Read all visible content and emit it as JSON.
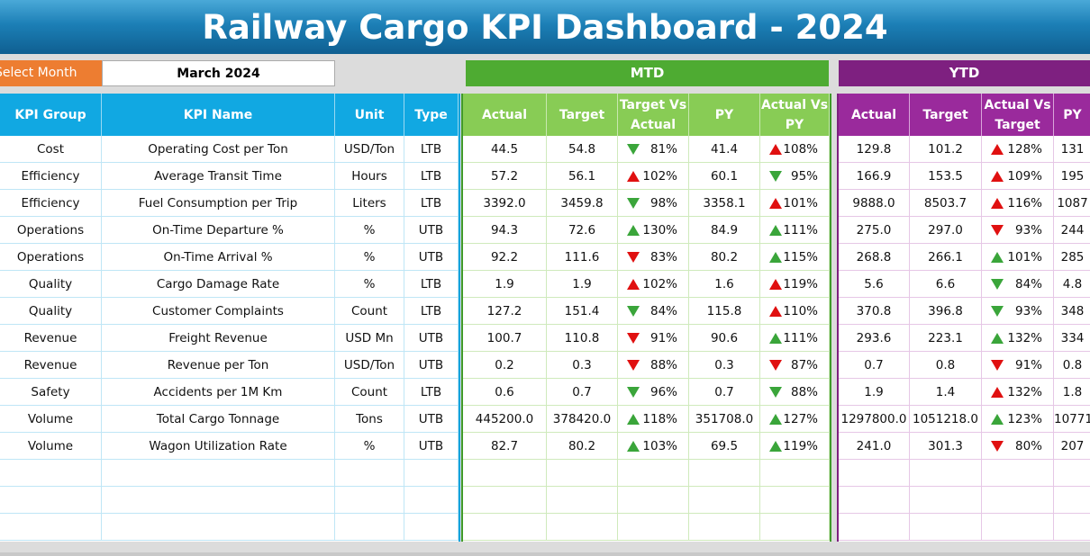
{
  "title": "Railway Cargo KPI Dashboard - 2024",
  "select_month": {
    "label": "Select Month",
    "value": "March 2024"
  },
  "sections": {
    "mtd": "MTD",
    "ytd": "YTD"
  },
  "left_headers": [
    "KPI Group",
    "KPI Name",
    "Unit",
    "Type"
  ],
  "mtd_headers": [
    "Actual",
    "Target",
    "Target Vs Actual",
    "PY",
    "Actual Vs PY"
  ],
  "ytd_headers": [
    "Actual",
    "Target",
    "Actual Vs Target",
    "PY"
  ],
  "rows": [
    {
      "group": "Cost",
      "name": "Operating Cost per Ton",
      "unit": "USD/Ton",
      "type": "LTB",
      "mtd": {
        "actual": "44.5",
        "target": "54.8",
        "tva_icon": "down-green",
        "tva": "81%",
        "py": "41.4",
        "avp_icon": "up-red",
        "avp": "108%"
      },
      "ytd": {
        "actual": "129.8",
        "target": "101.2",
        "avt_icon": "up-red",
        "avt": "128%",
        "py": "131"
      }
    },
    {
      "group": "Efficiency",
      "name": "Average Transit Time",
      "unit": "Hours",
      "type": "LTB",
      "mtd": {
        "actual": "57.2",
        "target": "56.1",
        "tva_icon": "up-red",
        "tva": "102%",
        "py": "60.1",
        "avp_icon": "down-green",
        "avp": "95%"
      },
      "ytd": {
        "actual": "166.9",
        "target": "153.5",
        "avt_icon": "up-red",
        "avt": "109%",
        "py": "195"
      }
    },
    {
      "group": "Efficiency",
      "name": "Fuel Consumption per Trip",
      "unit": "Liters",
      "type": "LTB",
      "mtd": {
        "actual": "3392.0",
        "target": "3459.8",
        "tva_icon": "down-green",
        "tva": "98%",
        "py": "3358.1",
        "avp_icon": "up-red",
        "avp": "101%"
      },
      "ytd": {
        "actual": "9888.0",
        "target": "8503.7",
        "avt_icon": "up-red",
        "avt": "116%",
        "py": "1087"
      }
    },
    {
      "group": "Operations",
      "name": "On-Time Departure %",
      "unit": "%",
      "type": "UTB",
      "mtd": {
        "actual": "94.3",
        "target": "72.6",
        "tva_icon": "up-green",
        "tva": "130%",
        "py": "84.9",
        "avp_icon": "up-green",
        "avp": "111%"
      },
      "ytd": {
        "actual": "275.0",
        "target": "297.0",
        "avt_icon": "down-red",
        "avt": "93%",
        "py": "244"
      }
    },
    {
      "group": "Operations",
      "name": "On-Time Arrival %",
      "unit": "%",
      "type": "UTB",
      "mtd": {
        "actual": "92.2",
        "target": "111.6",
        "tva_icon": "down-red",
        "tva": "83%",
        "py": "80.2",
        "avp_icon": "up-green",
        "avp": "115%"
      },
      "ytd": {
        "actual": "268.8",
        "target": "266.1",
        "avt_icon": "up-green",
        "avt": "101%",
        "py": "285"
      }
    },
    {
      "group": "Quality",
      "name": "Cargo Damage Rate",
      "unit": "%",
      "type": "LTB",
      "mtd": {
        "actual": "1.9",
        "target": "1.9",
        "tva_icon": "up-red",
        "tva": "102%",
        "py": "1.6",
        "avp_icon": "up-red",
        "avp": "119%"
      },
      "ytd": {
        "actual": "5.6",
        "target": "6.6",
        "avt_icon": "down-green",
        "avt": "84%",
        "py": "4.8"
      }
    },
    {
      "group": "Quality",
      "name": "Customer Complaints",
      "unit": "Count",
      "type": "LTB",
      "mtd": {
        "actual": "127.2",
        "target": "151.4",
        "tva_icon": "down-green",
        "tva": "84%",
        "py": "115.8",
        "avp_icon": "up-red",
        "avp": "110%"
      },
      "ytd": {
        "actual": "370.8",
        "target": "396.8",
        "avt_icon": "down-green",
        "avt": "93%",
        "py": "348"
      }
    },
    {
      "group": "Revenue",
      "name": "Freight Revenue",
      "unit": "USD Mn",
      "type": "UTB",
      "mtd": {
        "actual": "100.7",
        "target": "110.8",
        "tva_icon": "down-red",
        "tva": "91%",
        "py": "90.6",
        "avp_icon": "up-green",
        "avp": "111%"
      },
      "ytd": {
        "actual": "293.6",
        "target": "223.1",
        "avt_icon": "up-green",
        "avt": "132%",
        "py": "334"
      }
    },
    {
      "group": "Revenue",
      "name": "Revenue per Ton",
      "unit": "USD/Ton",
      "type": "UTB",
      "mtd": {
        "actual": "0.2",
        "target": "0.3",
        "tva_icon": "down-red",
        "tva": "88%",
        "py": "0.3",
        "avp_icon": "down-red",
        "avp": "87%"
      },
      "ytd": {
        "actual": "0.7",
        "target": "0.8",
        "avt_icon": "down-red",
        "avt": "91%",
        "py": "0.8"
      }
    },
    {
      "group": "Safety",
      "name": "Accidents per 1M Km",
      "unit": "Count",
      "type": "LTB",
      "mtd": {
        "actual": "0.6",
        "target": "0.7",
        "tva_icon": "down-green",
        "tva": "96%",
        "py": "0.7",
        "avp_icon": "down-green",
        "avp": "88%"
      },
      "ytd": {
        "actual": "1.9",
        "target": "1.4",
        "avt_icon": "up-red",
        "avt": "132%",
        "py": "1.8"
      }
    },
    {
      "group": "Volume",
      "name": "Total Cargo Tonnage",
      "unit": "Tons",
      "type": "UTB",
      "mtd": {
        "actual": "445200.0",
        "target": "378420.0",
        "tva_icon": "up-green",
        "tva": "118%",
        "py": "351708.0",
        "avp_icon": "up-green",
        "avp": "127%"
      },
      "ytd": {
        "actual": "1297800.0",
        "target": "1051218.0",
        "avt_icon": "up-green",
        "avt": "123%",
        "py": "10771"
      }
    },
    {
      "group": "Volume",
      "name": "Wagon Utilization Rate",
      "unit": "%",
      "type": "UTB",
      "mtd": {
        "actual": "82.7",
        "target": "80.2",
        "tva_icon": "up-green",
        "tva": "103%",
        "py": "69.5",
        "avp_icon": "up-green",
        "avp": "119%"
      },
      "ytd": {
        "actual": "241.0",
        "target": "301.3",
        "avt_icon": "down-red",
        "avt": "80%",
        "py": "207"
      }
    }
  ],
  "empty_rows": 3,
  "colors": {
    "title_bar": "#1c7fb6",
    "select_label": "#ed7d31",
    "mtd": "#4eab32",
    "ytd": "#7e2080",
    "left_header": "#11a8e2",
    "good": "#3aa53a",
    "bad": "#e01010"
  }
}
